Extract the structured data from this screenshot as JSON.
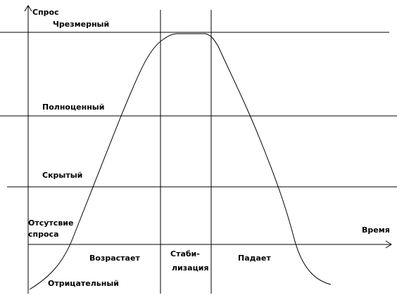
{
  "axes": {
    "y_label": "Спрос",
    "x_label": "Время"
  },
  "levels": [
    {
      "label": "Чрезмерный"
    },
    {
      "label": "Полноценный"
    },
    {
      "label": "Скрытый"
    },
    {
      "lines": [
        "Отсутсвие",
        "спроса"
      ]
    },
    {
      "label": "Отрицательный"
    }
  ],
  "phases": [
    {
      "lines": [
        "Возрастает"
      ]
    },
    {
      "lines": [
        "Стаби-",
        "лизация"
      ]
    },
    {
      "lines": [
        "Падает"
      ]
    }
  ]
}
